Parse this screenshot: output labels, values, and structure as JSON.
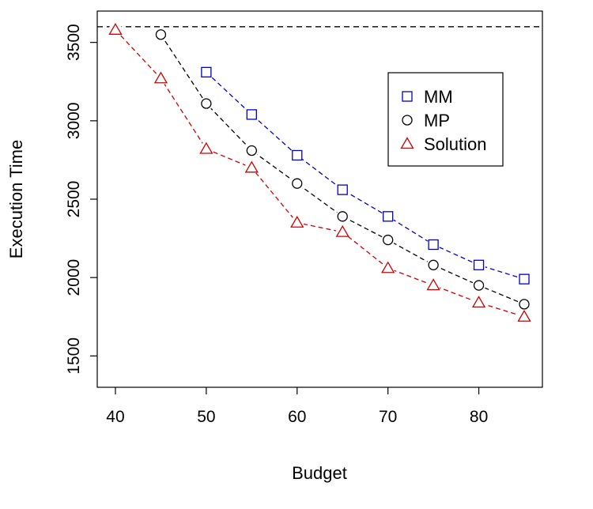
{
  "chart_data": {
    "type": "line",
    "title": "",
    "xlabel": "Budget",
    "ylabel": "Execution Time",
    "xlim": [
      38,
      87
    ],
    "ylim": [
      1300,
      3700
    ],
    "x_ticks": [
      40,
      50,
      60,
      70,
      80
    ],
    "y_ticks": [
      1500,
      2000,
      2500,
      3000,
      3500
    ],
    "grid": false,
    "legend_position": "top-right",
    "reference_line": {
      "y": 3600,
      "style": "dashed",
      "color": "#000000"
    },
    "series": [
      {
        "name": "MM",
        "marker": "square",
        "color": "#0000cc",
        "x": [
          50,
          55,
          60,
          65,
          70,
          75,
          80,
          85
        ],
        "y": [
          3310,
          3040,
          2780,
          2560,
          2390,
          2210,
          2080,
          1990
        ]
      },
      {
        "name": "MP",
        "marker": "circle",
        "color": "#000000",
        "x": [
          45,
          50,
          55,
          60,
          65,
          70,
          75,
          80,
          85
        ],
        "y": [
          3550,
          3110,
          2810,
          2600,
          2390,
          2240,
          2080,
          1950,
          1830
        ]
      },
      {
        "name": "Solution",
        "marker": "triangle",
        "color": "#cc0000",
        "x": [
          40,
          45,
          50,
          55,
          60,
          65,
          70,
          75,
          80,
          85
        ],
        "y": [
          3580,
          3270,
          2820,
          2700,
          2350,
          2290,
          2060,
          1950,
          1840,
          1750
        ]
      }
    ]
  }
}
